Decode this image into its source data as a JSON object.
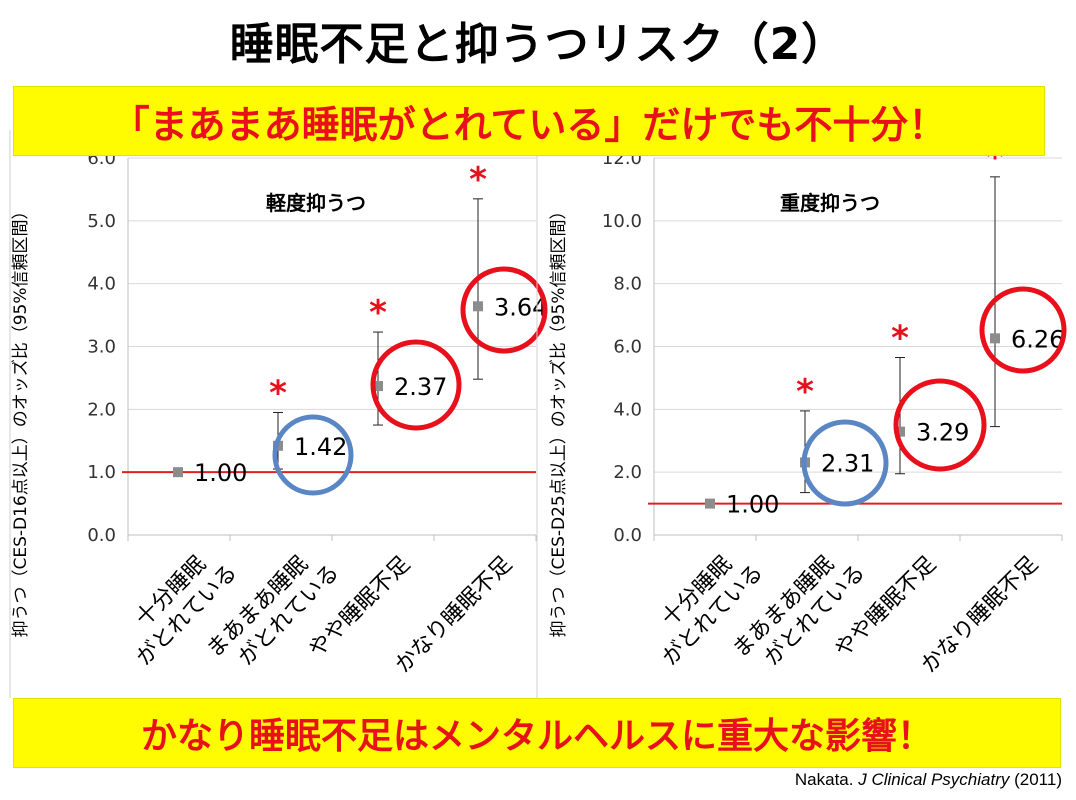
{
  "title": "睡眠不足と抑うつリスク（2）",
  "banner_top": "「まあまあ睡眠がとれている」だけでも不十分！",
  "banner_bottom": "かなり睡眠不足はメンタルヘルスに重大な影響！",
  "citation": {
    "author": "Nakata.",
    "journal": "J Clinical Psychiatry",
    "year": "(2011)"
  },
  "colors": {
    "reference_line": "#e02020",
    "highlight_red": "#e8101b",
    "highlight_blue": "#5b86c5",
    "marker": "#8c8c8c",
    "banner_bg": "#fffb00"
  },
  "chart_data": [
    {
      "type": "scatter",
      "title": "軽度抑うつ",
      "ylabel": "抑うつ（CES-D16点以上）のオッズ比（95%信頼区間）",
      "categories": [
        [
          "十分睡眠",
          "がとれている"
        ],
        [
          "まあまあ睡眠",
          "がとれている"
        ],
        [
          "やや睡眠不足"
        ],
        [
          "かなり睡眠不足"
        ]
      ],
      "values": [
        1.0,
        1.42,
        2.37,
        3.64
      ],
      "ci_low": [
        null,
        1.05,
        1.75,
        2.48
      ],
      "ci_high": [
        null,
        1.95,
        3.23,
        5.35
      ],
      "data_labels": [
        "1.00",
        "1.42",
        "2.37",
        "3.64"
      ],
      "significant": [
        false,
        true,
        true,
        true
      ],
      "circle": [
        "none",
        "blue",
        "red",
        "red"
      ],
      "ylim": [
        0,
        6
      ],
      "yticks": [
        "0.0",
        "1.0",
        "2.0",
        "3.0",
        "4.0",
        "5.0",
        "6.0"
      ],
      "ytick_values": [
        0,
        1,
        2,
        3,
        4,
        5,
        6
      ],
      "reference_line": 1.0,
      "grid": true
    },
    {
      "type": "scatter",
      "title": "重度抑うつ",
      "ylabel": "抑うつ（CES-D25点以上）のオッズ比（95%信頼区間）",
      "categories": [
        [
          "十分睡眠",
          "がとれている"
        ],
        [
          "まあまあ睡眠",
          "がとれている"
        ],
        [
          "やや睡眠不足"
        ],
        [
          "かなり睡眠不足"
        ]
      ],
      "values": [
        1.0,
        2.31,
        3.29,
        6.26
      ],
      "ci_low": [
        null,
        1.35,
        1.95,
        3.45
      ],
      "ci_high": [
        null,
        3.95,
        5.65,
        11.4
      ],
      "data_labels": [
        "1.00",
        "2.31",
        "3.29",
        "6.26"
      ],
      "significant": [
        false,
        true,
        true,
        true
      ],
      "circle": [
        "none",
        "blue",
        "red",
        "red"
      ],
      "ylim": [
        0,
        12
      ],
      "yticks": [
        "0.0",
        "2.0",
        "4.0",
        "6.0",
        "8.0",
        "10.0",
        "12.0"
      ],
      "ytick_values": [
        0,
        2,
        4,
        6,
        8,
        10,
        12
      ],
      "reference_line": 1.0,
      "grid": true
    }
  ]
}
